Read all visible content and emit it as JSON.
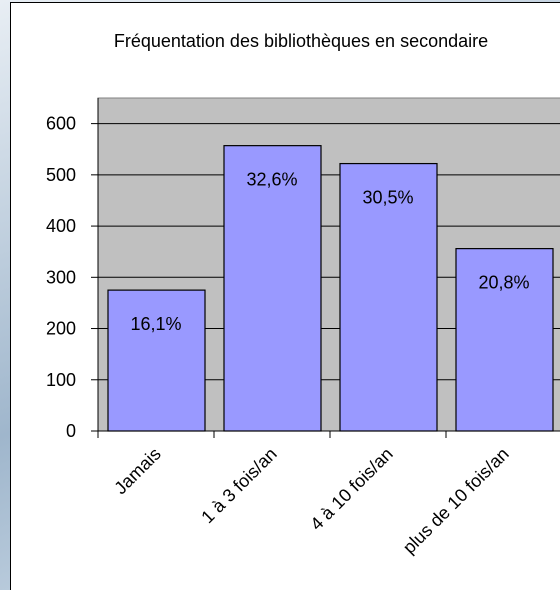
{
  "chart_data": {
    "type": "bar",
    "title": "Fréquentation des bibliothèques en secondaire",
    "categories": [
      "Jamais",
      "1 à 3 fois/an",
      "4 à 10 fois/an",
      "plus de 10 fois/an"
    ],
    "values": [
      275,
      557,
      522,
      356
    ],
    "labels": [
      "16,1%",
      "32,6%",
      "30,5%",
      "20,8%"
    ],
    "color": "#9999ff",
    "plot_background": "#c0c0c0",
    "ylim": [
      0,
      650
    ],
    "yticks": [
      0,
      100,
      200,
      300,
      400,
      500,
      600
    ],
    "grid": true
  }
}
